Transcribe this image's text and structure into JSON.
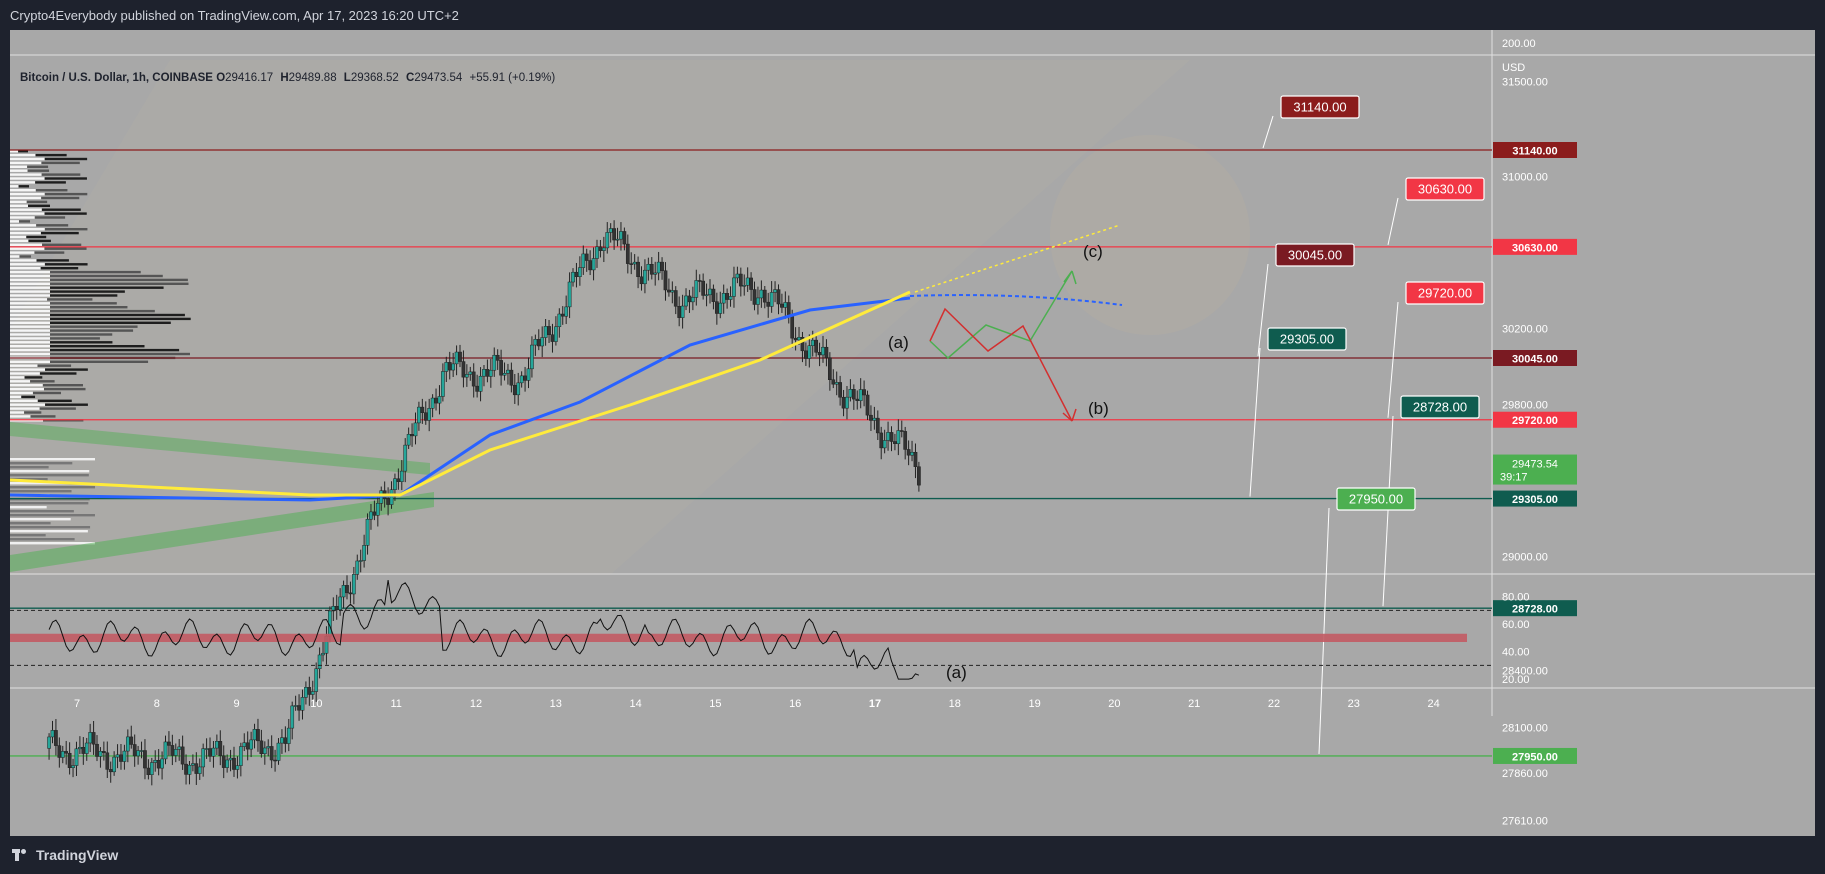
{
  "header": {
    "publisher_text": "Crypto4Everybody published on TradingView.com, Apr 17, 2023 16:20 UTC+2"
  },
  "footer": {
    "logo_text": "TradingView"
  },
  "symbol": {
    "name": "Bitcoin / U.S. Dollar, 1h, COINBASE",
    "open_key": "O",
    "open": "29416.17",
    "high_key": "H",
    "high": "29489.88",
    "low_key": "L",
    "low": "29368.52",
    "close_key": "C",
    "close": "29473.54",
    "change": "+55.91 (+0.19%)"
  },
  "price_axis": {
    "top_label": "200.00",
    "unit": "USD",
    "ticks": [
      "31500.00",
      "31000.00",
      "30200.00",
      "29800.00",
      "29000.00",
      "28400.00",
      "28100.00",
      "27860.00",
      "27610.00"
    ],
    "last_price": "29473.54",
    "countdown": "39:17"
  },
  "levels": [
    {
      "value": "31140.00",
      "color": "#8b1c1c",
      "text_color": "#ffffff"
    },
    {
      "value": "30630.00",
      "color": "#f23645",
      "text_color": "#ffffff"
    },
    {
      "value": "30045.00",
      "color": "#7a1a22",
      "text_color": "#ffffff"
    },
    {
      "value": "29720.00",
      "color": "#f23645",
      "text_color": "#ffffff"
    },
    {
      "value": "29305.00",
      "color": "#0f5c4f",
      "text_color": "#ffffff"
    },
    {
      "value": "28728.00",
      "color": "#0f5c4f",
      "text_color": "#ffffff"
    },
    {
      "value": "27950.00",
      "color": "#4caf50",
      "text_color": "#ffffff"
    }
  ],
  "annotations": {
    "a_label": "(a)",
    "b_label": "(b)",
    "c_label": "(c)",
    "rsi_a_label": "(a)"
  },
  "rsi_axis": {
    "ticks": [
      "80.00",
      "60.00",
      "40.00",
      "20.00"
    ]
  },
  "time_axis": {
    "labels": [
      "7",
      "8",
      "9",
      "10",
      "11",
      "12",
      "13",
      "14",
      "15",
      "16",
      "17",
      "18",
      "19",
      "20",
      "21",
      "22",
      "23",
      "24"
    ]
  },
  "colors": {
    "ma_blue": "#2962ff",
    "ma_yellow": "#ffeb3b",
    "candle_up": "#26a69a",
    "candle_down": "#333333",
    "up_path": "#4caf50",
    "down_path": "#d32f2f",
    "rsi_band": "#c25a63"
  },
  "chart_data": {
    "type": "line",
    "title": "Bitcoin / U.S. Dollar, 1h, COINBASE",
    "xlabel": "",
    "ylabel": "",
    "ylim": [
      27500,
      31700
    ],
    "x": [
      "7",
      "8",
      "9",
      "10",
      "11",
      "12",
      "13",
      "14",
      "15",
      "16",
      "17",
      "17.5"
    ],
    "series": [
      {
        "values": [
          27990,
          27950,
          27930,
          28030,
          29100,
          29980,
          29950,
          30700,
          30350,
          30420,
          29900,
          29473.54
        ]
      }
    ],
    "horizontal_levels": [
      31140,
      30630,
      30045,
      29720,
      29305,
      28728,
      27950
    ],
    "rsi_ylim": [
      15,
      95
    ],
    "rsi_levels": [
      70,
      30
    ],
    "grid": false,
    "legend": "top-left"
  }
}
